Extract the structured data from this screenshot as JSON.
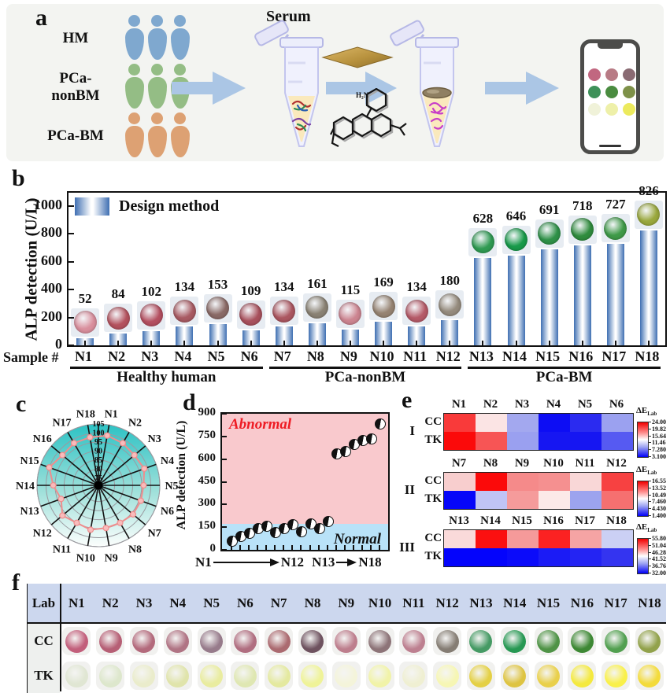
{
  "panels": {
    "a": "a",
    "b": "b",
    "c": "c",
    "d": "d",
    "e": "e",
    "f": "f"
  },
  "panel_a": {
    "groups": [
      {
        "name": "HM",
        "color": "#7fa8cf"
      },
      {
        "name": "PCa-nonBM",
        "color": "#94bd85"
      },
      {
        "name": "PCa-BM",
        "color": "#dda173"
      }
    ],
    "serum_label": "Serum",
    "chem_label": "H₂N",
    "phone_dots": [
      "#c16780",
      "#b87b85",
      "#8a6b73",
      "#3e9159",
      "#4a8c40",
      "#7e9149",
      "#f0f2d9",
      "#eef0a9",
      "#ecea5d"
    ]
  },
  "panel_b": {
    "legend": "Design method",
    "ylabel": "ALP detection (U/L)",
    "sample_label": "Sample #",
    "yticks": [
      "0",
      "200",
      "400",
      "600",
      "800",
      "1000"
    ],
    "samples": [
      "N1",
      "N2",
      "N3",
      "N4",
      "N5",
      "N6",
      "N7",
      "N8",
      "N9",
      "N10",
      "N11",
      "N12",
      "N13",
      "N14",
      "N15",
      "N16",
      "N17",
      "N18"
    ],
    "values": [
      52,
      84,
      102,
      134,
      153,
      109,
      134,
      161,
      115,
      169,
      134,
      180,
      628,
      646,
      691,
      718,
      727,
      826
    ],
    "well_colors": [
      "#d98f9d",
      "#b4525e",
      "#b44f60",
      "#a85a62",
      "#8a6a66",
      "#a8505c",
      "#ab5660",
      "#8a8274",
      "#cc8490",
      "#968372",
      "#b55a68",
      "#958b7d",
      "#2f9a52",
      "#189a4a",
      "#2f9148",
      "#2f8c3d",
      "#3f9a48",
      "#9aa83d"
    ],
    "groups": [
      {
        "name": "Healthy human",
        "from": 0,
        "to": 5
      },
      {
        "name": "PCa-nonBM",
        "from": 6,
        "to": 11
      },
      {
        "name": "PCa-BM",
        "from": 12,
        "to": 17
      }
    ]
  },
  "panel_c": {
    "spokes": [
      "N1",
      "N2",
      "N3",
      "N4",
      "N5",
      "N6",
      "N7",
      "N8",
      "N9",
      "N10",
      "N11",
      "N12",
      "N13",
      "N14",
      "N15",
      "N16",
      "N17",
      "N18"
    ],
    "rticks": [
      "105",
      "100",
      "95",
      "90",
      "85",
      "80",
      "75"
    ],
    "values": [
      99,
      98,
      97,
      98,
      96,
      96,
      96,
      95,
      95,
      96,
      95,
      97,
      93,
      96,
      100,
      97,
      98,
      98
    ],
    "fill_top": "#2cc2c4",
    "fill_bottom": "#fcfefd",
    "line_color": "#ef8d8d"
  },
  "panel_d": {
    "ylabel": "ALP detection (U/L)",
    "yticks": [
      "0",
      "150",
      "300",
      "450",
      "600",
      "750",
      "900"
    ],
    "abnormal_label": "Abnormal",
    "normal_label": "Normal",
    "threshold": 170,
    "values": [
      52,
      84,
      102,
      134,
      153,
      109,
      134,
      161,
      115,
      169,
      134,
      180,
      628,
      646,
      691,
      718,
      727,
      826
    ],
    "xaxis": [
      "N1",
      "N12",
      "N13",
      "N18"
    ]
  },
  "panel_e": {
    "colorbar_title": "ΔE",
    "colorbar_sub": "Lab",
    "row_names": [
      "CC",
      "TK"
    ],
    "blocks": [
      {
        "id": "I",
        "columns": [
          "N1",
          "N2",
          "N3",
          "N4",
          "N5",
          "N6"
        ],
        "cc_colors": [
          "#f93a3a",
          "#fbe4e4",
          "#a3a8ef",
          "#0d0df4",
          "#2b2bf0",
          "#9ba1f0"
        ],
        "tk_colors": [
          "#fb0a0a",
          "#f75555",
          "#9aa0f0",
          "#1616f2",
          "#1616f2",
          "#565af2"
        ],
        "scale": [
          "24.00",
          "19.82",
          "15.64",
          "11.46",
          "7.280",
          "3.100"
        ]
      },
      {
        "id": "II",
        "columns": [
          "N7",
          "N8",
          "N9",
          "N10",
          "N11",
          "N12"
        ],
        "cc_colors": [
          "#f8cece",
          "#fb0a0a",
          "#f58a8a",
          "#f59090",
          "#f9d7d7",
          "#f74141"
        ],
        "tk_colors": [
          "#0606f9",
          "#c0c4f5",
          "#f59b9b",
          "#fceae8",
          "#9ca3ee",
          "#f67070"
        ],
        "scale": [
          "16.55",
          "13.52",
          "10.49",
          "7.460",
          "4.430",
          "1.400"
        ]
      },
      {
        "id": "III",
        "columns": [
          "N13",
          "N14",
          "N15",
          "N16",
          "N17",
          "N18"
        ],
        "cc_colors": [
          "#fadada",
          "#fb1010",
          "#f59a9a",
          "#fb2222",
          "#f5a4a4",
          "#cbd0f4"
        ],
        "tk_colors": [
          "#0404fc",
          "#0404fc",
          "#0b0bfa",
          "#1b1bf6",
          "#2424f3",
          "#3434f0"
        ],
        "scale": [
          "55.80",
          "51.04",
          "46.28",
          "41.52",
          "36.76",
          "32.00"
        ]
      }
    ]
  },
  "panel_f": {
    "header": "Lab",
    "columns": [
      "N1",
      "N2",
      "N3",
      "N4",
      "N5",
      "N6",
      "N7",
      "N8",
      "N9",
      "N10",
      "N11",
      "N12",
      "N13",
      "N14",
      "N15",
      "N16",
      "N17",
      "N18"
    ],
    "rows": [
      {
        "name": "CC",
        "colors": [
          "#c25f7b",
          "#b65f75",
          "#b36a7c",
          "#b07484",
          "#977b8b",
          "#b06e80",
          "#ab6a70",
          "#6e525f",
          "#bd7e8d",
          "#8d7478",
          "#bd8090",
          "#857d74",
          "#459a64",
          "#279853",
          "#4f9346",
          "#3d8834",
          "#52a050",
          "#92a24b"
        ]
      },
      {
        "name": "TK",
        "colors": [
          "#e0e6d3",
          "#dde7cc",
          "#eaeccb",
          "#e0e4ab",
          "#e9ec9f",
          "#dfe7b2",
          "#e4e99f",
          "#eff398",
          "#f4f4da",
          "#f1f3a8",
          "#efefd2",
          "#f6f6b4",
          "#e4d045",
          "#dec442",
          "#e9d04b",
          "#f4e93e",
          "#f9f04a",
          "#f3db3b"
        ]
      }
    ]
  },
  "chart_data": [
    {
      "type": "bar",
      "title": "",
      "legend": [
        "Design method"
      ],
      "xlabel": "Sample #",
      "ylabel": "ALP detection (U/L)",
      "categories": [
        "N1",
        "N2",
        "N3",
        "N4",
        "N5",
        "N6",
        "N7",
        "N8",
        "N9",
        "N10",
        "N11",
        "N12",
        "N13",
        "N14",
        "N15",
        "N16",
        "N17",
        "N18"
      ],
      "values": [
        52,
        84,
        102,
        134,
        153,
        109,
        134,
        161,
        115,
        169,
        134,
        180,
        628,
        646,
        691,
        718,
        727,
        826
      ],
      "ylim": [
        0,
        1100
      ],
      "yticks": [
        0,
        200,
        400,
        600,
        800,
        1000
      ],
      "group_annotations": [
        {
          "label": "Healthy human",
          "samples": "N1-N6"
        },
        {
          "label": "PCa-nonBM",
          "samples": "N7-N12"
        },
        {
          "label": "PCa-BM",
          "samples": "N13-N18"
        }
      ]
    },
    {
      "type": "radar",
      "categories": [
        "N1",
        "N2",
        "N3",
        "N4",
        "N5",
        "N6",
        "N7",
        "N8",
        "N9",
        "N10",
        "N11",
        "N12",
        "N13",
        "N14",
        "N15",
        "N16",
        "N17",
        "N18"
      ],
      "values": [
        99,
        98,
        97,
        98,
        96,
        96,
        96,
        95,
        95,
        96,
        95,
        97,
        93,
        96,
        100,
        97,
        98,
        98
      ],
      "rticks": [
        105,
        100,
        95,
        90,
        85,
        80,
        75
      ],
      "rlim": [
        75,
        105
      ]
    },
    {
      "type": "scatter",
      "ylabel": "ALP detection (U/L)",
      "ylim": [
        0,
        900
      ],
      "yticks": [
        0,
        150,
        300,
        450,
        600,
        750,
        900
      ],
      "x": [
        1,
        2,
        3,
        4,
        5,
        6,
        7,
        8,
        9,
        10,
        11,
        12,
        13,
        14,
        15,
        16,
        17,
        18
      ],
      "values": [
        52,
        84,
        102,
        134,
        153,
        109,
        134,
        161,
        115,
        169,
        134,
        180,
        628,
        646,
        691,
        718,
        727,
        826
      ],
      "regions": [
        {
          "label": "Normal",
          "range": [
            0,
            170
          ]
        },
        {
          "label": "Abnormal",
          "range": [
            170,
            900
          ]
        }
      ]
    },
    {
      "type": "heatmap",
      "rows": [
        "CC",
        "TK"
      ],
      "colorbar_label": "ΔE Lab",
      "blocks": [
        {
          "id": "I",
          "columns": [
            "N1",
            "N2",
            "N3",
            "N4",
            "N5",
            "N6"
          ],
          "scale_range": [
            3.1,
            24.0
          ]
        },
        {
          "id": "II",
          "columns": [
            "N7",
            "N8",
            "N9",
            "N10",
            "N11",
            "N12"
          ],
          "scale_range": [
            1.4,
            16.55
          ]
        },
        {
          "id": "III",
          "columns": [
            "N13",
            "N14",
            "N15",
            "N16",
            "N17",
            "N18"
          ],
          "scale_range": [
            32.0,
            55.8
          ]
        }
      ]
    }
  ]
}
